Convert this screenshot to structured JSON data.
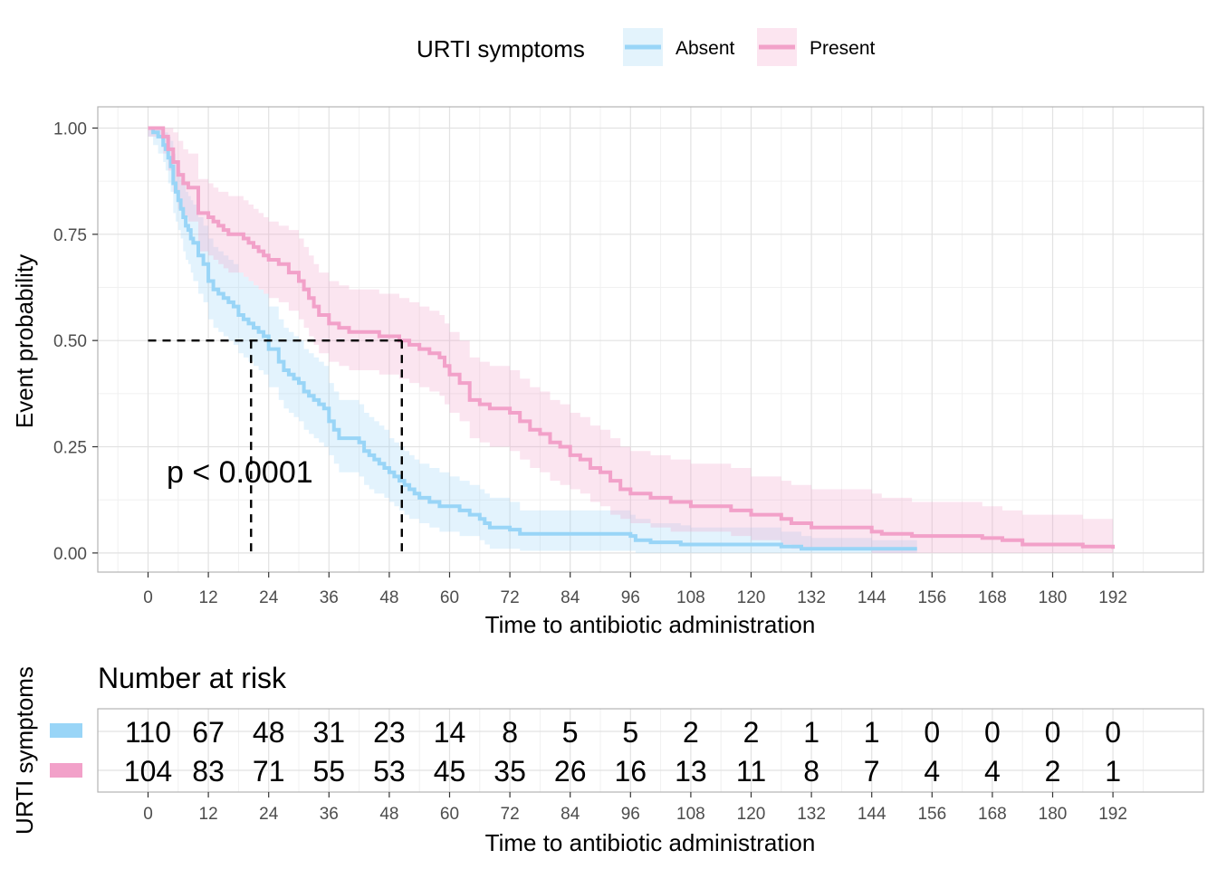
{
  "legend": {
    "title": "URTI symptoms",
    "items": [
      {
        "label": "Absent",
        "color": "#99d5f7"
      },
      {
        "label": "Present",
        "color": "#f2a1c9"
      }
    ]
  },
  "annotation": {
    "pvalue": "p < 0.0001"
  },
  "risk_table": {
    "title": "Number at risk",
    "ylabel": "URTI symptoms",
    "xlabel": "Time to antibiotic administration",
    "times": [
      0,
      12,
      24,
      36,
      48,
      60,
      72,
      84,
      96,
      108,
      120,
      132,
      144,
      156,
      168,
      180,
      192
    ],
    "rows": [
      {
        "group": "Absent",
        "color": "#99d5f7",
        "values": [
          "110",
          "67",
          "48",
          "31",
          "23",
          "14",
          "8",
          "5",
          "5",
          "2",
          "2",
          "1",
          "1",
          "0",
          "0",
          "0",
          "0"
        ]
      },
      {
        "group": "Present",
        "color": "#f2a1c9",
        "values": [
          "104",
          "83",
          "71",
          "55",
          "53",
          "45",
          "35",
          "26",
          "16",
          "13",
          "11",
          "8",
          "7",
          "4",
          "4",
          "2",
          "1"
        ]
      }
    ]
  },
  "chart_data": {
    "type": "line",
    "title": "",
    "xlabel": "Time to antibiotic administration",
    "ylabel": "Event probability",
    "xlim": [
      -10,
      210
    ],
    "ylim": [
      -0.045,
      1.05
    ],
    "xticks": [
      0,
      12,
      24,
      36,
      48,
      60,
      72,
      84,
      96,
      108,
      120,
      132,
      144,
      156,
      168,
      180,
      192
    ],
    "yticks": [
      0,
      0.25,
      0.5,
      0.75,
      1.0
    ],
    "ytick_labels": [
      "0.00",
      "0.25",
      "0.50",
      "0.75",
      "1.00"
    ],
    "grid": true,
    "legend_position": "top",
    "median_line": {
      "y": 0.5,
      "x": [
        20.5,
        50.5
      ]
    },
    "series": [
      {
        "name": "Absent",
        "color": "#99d5f7",
        "step": true,
        "x": [
          0,
          1,
          2,
          3,
          3.5,
          4,
          4.5,
          5,
          5.5,
          6,
          6.5,
          7,
          7.5,
          8,
          8.5,
          9,
          10,
          11,
          12,
          13,
          14,
          15,
          16,
          17,
          18,
          19,
          20,
          21,
          22,
          23,
          24,
          26,
          27,
          28,
          29,
          30,
          31,
          32,
          33,
          34,
          35,
          36,
          37,
          38,
          42,
          43,
          44,
          45,
          46,
          47,
          48,
          49,
          50,
          51,
          52,
          53,
          54,
          55,
          56,
          58,
          60,
          62,
          64,
          66,
          67,
          68,
          72,
          74,
          84,
          96,
          97,
          100,
          106,
          108,
          126,
          130,
          132,
          144,
          153
        ],
        "y": [
          1.0,
          0.99,
          0.98,
          0.96,
          0.95,
          0.93,
          0.91,
          0.87,
          0.85,
          0.83,
          0.81,
          0.79,
          0.77,
          0.76,
          0.74,
          0.73,
          0.7,
          0.68,
          0.64,
          0.62,
          0.61,
          0.6,
          0.59,
          0.58,
          0.56,
          0.55,
          0.54,
          0.53,
          0.52,
          0.51,
          0.48,
          0.45,
          0.43,
          0.42,
          0.41,
          0.4,
          0.38,
          0.37,
          0.36,
          0.35,
          0.34,
          0.31,
          0.29,
          0.27,
          0.26,
          0.24,
          0.23,
          0.22,
          0.21,
          0.2,
          0.19,
          0.18,
          0.17,
          0.16,
          0.15,
          0.14,
          0.13,
          0.13,
          0.12,
          0.11,
          0.11,
          0.1,
          0.09,
          0.08,
          0.07,
          0.06,
          0.055,
          0.045,
          0.045,
          0.04,
          0.03,
          0.025,
          0.02,
          0.02,
          0.015,
          0.01,
          0.01,
          0.01,
          0.01
        ],
        "ci_upper": [
          1.0,
          1.0,
          1.0,
          0.99,
          0.99,
          0.98,
          0.97,
          0.94,
          0.92,
          0.9,
          0.88,
          0.87,
          0.85,
          0.84,
          0.83,
          0.82,
          0.79,
          0.77,
          0.74,
          0.72,
          0.71,
          0.7,
          0.69,
          0.68,
          0.66,
          0.65,
          0.64,
          0.63,
          0.62,
          0.61,
          0.58,
          0.55,
          0.53,
          0.52,
          0.51,
          0.5,
          0.48,
          0.47,
          0.46,
          0.45,
          0.44,
          0.4,
          0.38,
          0.36,
          0.35,
          0.33,
          0.32,
          0.31,
          0.3,
          0.29,
          0.27,
          0.26,
          0.25,
          0.24,
          0.23,
          0.22,
          0.21,
          0.21,
          0.2,
          0.19,
          0.18,
          0.17,
          0.16,
          0.15,
          0.14,
          0.13,
          0.12,
          0.1,
          0.1,
          0.09,
          0.08,
          0.07,
          0.065,
          0.06,
          0.05,
          0.04,
          0.035,
          0.03,
          0.03
        ],
        "ci_lower": [
          0.98,
          0.96,
          0.94,
          0.92,
          0.9,
          0.87,
          0.85,
          0.8,
          0.78,
          0.76,
          0.74,
          0.71,
          0.69,
          0.68,
          0.66,
          0.64,
          0.61,
          0.59,
          0.55,
          0.53,
          0.52,
          0.51,
          0.5,
          0.49,
          0.47,
          0.46,
          0.45,
          0.44,
          0.43,
          0.42,
          0.39,
          0.36,
          0.34,
          0.33,
          0.32,
          0.31,
          0.29,
          0.28,
          0.27,
          0.26,
          0.25,
          0.23,
          0.21,
          0.19,
          0.18,
          0.16,
          0.15,
          0.14,
          0.14,
          0.13,
          0.12,
          0.11,
          0.1,
          0.09,
          0.08,
          0.08,
          0.07,
          0.07,
          0.06,
          0.05,
          0.05,
          0.04,
          0.04,
          0.03,
          0.02,
          0.01,
          0.01,
          0.005,
          0.005,
          0.005,
          0.0,
          0.0,
          0.0,
          0.0,
          0.0,
          0.0,
          0.0,
          0.0,
          0.0
        ]
      },
      {
        "name": "Present",
        "color": "#f2a1c9",
        "step": true,
        "x": [
          0,
          3,
          4,
          5,
          6,
          7,
          8,
          10,
          12,
          13,
          14,
          15,
          16,
          18,
          19,
          20,
          21,
          22,
          23,
          24,
          26,
          28,
          30,
          31,
          32,
          33,
          34,
          36,
          38,
          40,
          44,
          46,
          48,
          50,
          52,
          54,
          56,
          58,
          59,
          60,
          62,
          64,
          66,
          68,
          72,
          74,
          76,
          78,
          80,
          82,
          84,
          86,
          88,
          90,
          92,
          94,
          96,
          100,
          104,
          108,
          116,
          120,
          126,
          128,
          132,
          144,
          146,
          152,
          166,
          170,
          174,
          186,
          192
        ],
        "y": [
          1.0,
          0.98,
          0.95,
          0.92,
          0.89,
          0.87,
          0.86,
          0.8,
          0.79,
          0.78,
          0.77,
          0.76,
          0.75,
          0.75,
          0.74,
          0.73,
          0.72,
          0.71,
          0.7,
          0.69,
          0.68,
          0.66,
          0.64,
          0.62,
          0.6,
          0.58,
          0.56,
          0.54,
          0.53,
          0.52,
          0.52,
          0.51,
          0.51,
          0.5,
          0.49,
          0.48,
          0.47,
          0.46,
          0.44,
          0.42,
          0.4,
          0.36,
          0.35,
          0.34,
          0.33,
          0.31,
          0.29,
          0.28,
          0.26,
          0.25,
          0.23,
          0.22,
          0.2,
          0.19,
          0.17,
          0.15,
          0.14,
          0.13,
          0.12,
          0.11,
          0.1,
          0.09,
          0.08,
          0.07,
          0.06,
          0.05,
          0.045,
          0.04,
          0.035,
          0.03,
          0.02,
          0.015,
          0.01
        ],
        "ci_upper": [
          1.0,
          1.0,
          1.0,
          0.99,
          0.97,
          0.95,
          0.94,
          0.88,
          0.87,
          0.86,
          0.85,
          0.85,
          0.84,
          0.84,
          0.83,
          0.82,
          0.81,
          0.8,
          0.79,
          0.78,
          0.77,
          0.76,
          0.74,
          0.72,
          0.7,
          0.68,
          0.66,
          0.64,
          0.63,
          0.62,
          0.62,
          0.61,
          0.61,
          0.6,
          0.59,
          0.58,
          0.57,
          0.56,
          0.54,
          0.52,
          0.5,
          0.46,
          0.45,
          0.44,
          0.43,
          0.41,
          0.39,
          0.38,
          0.36,
          0.35,
          0.33,
          0.32,
          0.3,
          0.29,
          0.27,
          0.25,
          0.24,
          0.23,
          0.22,
          0.21,
          0.2,
          0.18,
          0.17,
          0.16,
          0.15,
          0.14,
          0.13,
          0.12,
          0.11,
          0.1,
          0.09,
          0.08,
          0.07
        ],
        "ci_lower": [
          0.98,
          0.94,
          0.9,
          0.85,
          0.81,
          0.79,
          0.78,
          0.71,
          0.7,
          0.69,
          0.68,
          0.67,
          0.66,
          0.66,
          0.65,
          0.64,
          0.63,
          0.62,
          0.61,
          0.6,
          0.59,
          0.57,
          0.55,
          0.53,
          0.51,
          0.49,
          0.47,
          0.45,
          0.44,
          0.43,
          0.43,
          0.42,
          0.42,
          0.41,
          0.4,
          0.39,
          0.38,
          0.37,
          0.35,
          0.33,
          0.31,
          0.27,
          0.26,
          0.25,
          0.24,
          0.22,
          0.2,
          0.19,
          0.17,
          0.16,
          0.15,
          0.14,
          0.12,
          0.11,
          0.09,
          0.08,
          0.07,
          0.06,
          0.05,
          0.05,
          0.04,
          0.03,
          0.02,
          0.01,
          0.01,
          0.0,
          0.0,
          0.0,
          0.0,
          0.0,
          0.0,
          0.0,
          0.0
        ]
      }
    ]
  }
}
